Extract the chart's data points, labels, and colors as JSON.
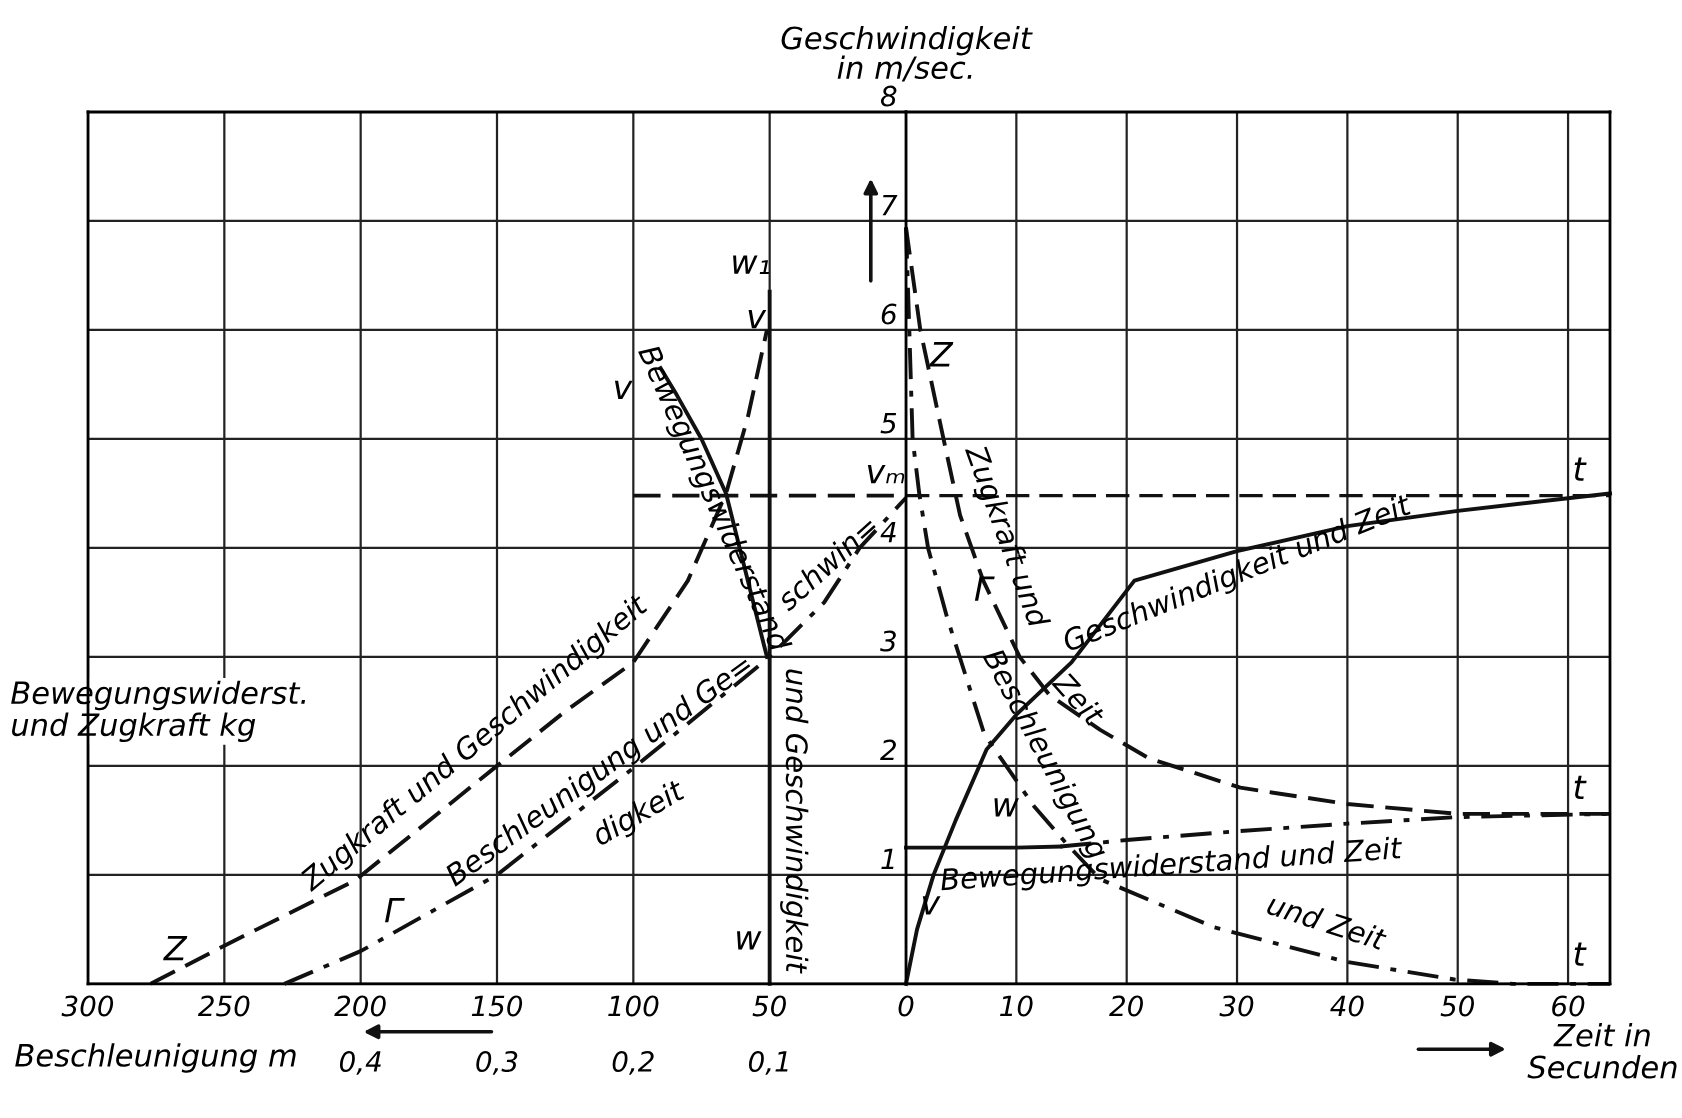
{
  "chart_data": [
    {
      "type": "line",
      "xlabel": "Bewegungswiderst.\nund Zugkraft kg",
      "x2label": "Beschleunigung m",
      "xlim": [
        300,
        0
      ],
      "xticks": [
        300,
        250,
        200,
        150,
        100,
        50
      ],
      "x2lim": [
        0.6,
        0
      ],
      "x2ticks": [
        {
          "value": 0.4,
          "label": "0,4"
        },
        {
          "value": 0.3,
          "label": "0,3"
        },
        {
          "value": 0.2,
          "label": "0,2"
        },
        {
          "value": 0.1,
          "label": "0,1"
        }
      ],
      "ylim": [
        0,
        8
      ],
      "yticks": [
        0,
        1,
        2,
        3,
        4,
        5,
        6,
        7,
        8
      ],
      "tick_labels": "x",
      "grid": true,
      "marker": "none",
      "series": [
        {
          "color": "#111111",
          "line_style": "dashed",
          "x": [
            277,
            250,
            202,
            150,
            125,
            100,
            80,
            66,
            58,
            51
          ],
          "values": [
            0,
            0.35,
            0.95,
            2.0,
            2.5,
            2.95,
            3.7,
            4.5,
            5.2,
            6.0
          ]
        },
        {
          "color": "#111111",
          "line_style": "solid",
          "x": [
            50,
            50
          ],
          "values": [
            0,
            6.35
          ]
        },
        {
          "color": "#111111",
          "line_style": "solid",
          "x": [
            51,
            56,
            61,
            66,
            75,
            84,
            90
          ],
          "values": [
            3.0,
            3.5,
            4.0,
            4.5,
            5.0,
            5.4,
            5.65
          ]
        },
        {
          "color": "#111111",
          "line_style": "dashdot",
          "axis": "x2",
          "x": [
            0.456,
            0.4,
            0.3,
            0.2,
            0.1,
            0.06,
            0.034,
            0.0
          ],
          "values": [
            0,
            0.3,
            1.0,
            1.98,
            3.0,
            3.5,
            4.0,
            4.46
          ]
        },
        {
          "color": "#111111",
          "line_style": "dashed",
          "x": [
            100,
            0
          ],
          "values": [
            4.48,
            4.48
          ]
        }
      ],
      "annotations": [
        "Zugkraft und Geschwindigkeit",
        "Beschleunigung und Ge=",
        "digkeit",
        "Bewegungswiderstand",
        "und Geschwindigkeit",
        "schwin=",
        "w₁",
        "v",
        "v",
        "w",
        "Z",
        "Γ"
      ]
    },
    {
      "type": "line",
      "xlabel": "Zeit in\nSecunden",
      "ylabel": "Geschwindigkeit\nin m/sec.",
      "xlim": [
        0,
        63.8
      ],
      "xticks": [
        0,
        10,
        20,
        30,
        40,
        50,
        60
      ],
      "ylim": [
        0,
        8
      ],
      "yticks": [
        {
          "value": 0,
          "label": null
        },
        1,
        2,
        3,
        4,
        5,
        6,
        7,
        8
      ],
      "grid": true,
      "marker": "none",
      "series": [
        {
          "color": "#111111",
          "line_style": "solid",
          "x": [
            0,
            1,
            2.5,
            4.5,
            7.3,
            10,
            15,
            20.7,
            30,
            40,
            50,
            63.8
          ],
          "values": [
            0,
            0.5,
            1.0,
            1.5,
            2.15,
            2.47,
            2.95,
            3.7,
            3.97,
            4.2,
            4.34,
            4.5
          ]
        },
        {
          "color": "#111111",
          "line_style": "dashed",
          "x": [
            0,
            1.3,
            3.4,
            4.9,
            7,
            10.3,
            13,
            17.6,
            22,
            30.3,
            40,
            50,
            63.8
          ],
          "values": [
            6.94,
            6.0,
            5.0,
            4.3,
            3.7,
            3.0,
            2.65,
            2.33,
            2.07,
            1.8,
            1.65,
            1.56,
            1.56
          ]
        },
        {
          "color": "#111111",
          "line_style": "dashdot",
          "x": [
            0,
            0.3,
            0.6,
            1.2,
            2,
            3.7,
            7.1,
            11.6,
            14.6,
            17.6,
            27.9,
            40,
            49.7,
            55,
            63.8
          ],
          "values": [
            6.94,
            6.0,
            5.0,
            4.5,
            4.0,
            3.37,
            2.29,
            1.63,
            1.28,
            0.96,
            0.52,
            0.2,
            0.04,
            0,
            0
          ]
        },
        {
          "color": "#111111",
          "line_style": "solid",
          "x": [
            0,
            10,
            14
          ],
          "values": [
            1.25,
            1.25,
            1.26
          ]
        },
        {
          "color": "#111111",
          "line_style": "dashdot",
          "x": [
            14,
            20,
            30,
            40,
            50,
            63.8
          ],
          "values": [
            1.26,
            1.32,
            1.4,
            1.47,
            1.53,
            1.56
          ]
        }
      ],
      "ref_lines": [
        {
          "axis": "y",
          "value": 4.48,
          "label": "vₘ",
          "line_style": "dashed",
          "color": "#111111"
        }
      ],
      "annotations": [
        "Geschwindigkeit und Zeit",
        "Zugkraft und",
        "Zeit",
        "Z",
        "Γ",
        "Beschleunigung",
        "und Zeit",
        "Bewegungswiderstand und Zeit",
        "w",
        "v",
        "t",
        "t",
        "t"
      ]
    }
  ]
}
